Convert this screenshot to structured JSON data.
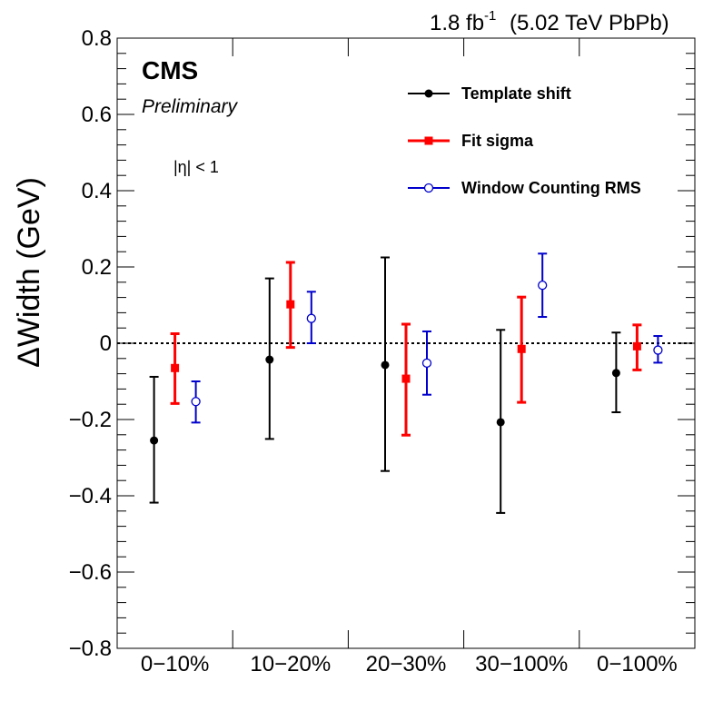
{
  "chart_data": {
    "type": "scatter",
    "header": "(5.02 TeV PbPb)",
    "lumi_value": "1.8 fb",
    "lumi_exp": "-1",
    "experiment": "CMS",
    "status": "Preliminary",
    "annotation": "|η| < 1",
    "ylabel": "ΔWidth (GeV)",
    "ylim": [
      -0.8,
      0.8
    ],
    "yticks": [
      -0.8,
      -0.6,
      -0.4,
      -0.2,
      0,
      0.2,
      0.4,
      0.6,
      0.8
    ],
    "ytick_labels": [
      "−0.8",
      "−0.6",
      "−0.4",
      "−0.2",
      "0",
      "0.2",
      "0.4",
      "0.6",
      "0.8"
    ],
    "categories": [
      "0−10%",
      "10−20%",
      "20−30%",
      "30−100%",
      "0−100%"
    ],
    "series": [
      {
        "name": "Template shift",
        "color": "#000000",
        "marker": "filled-circle",
        "values": [
          -0.255,
          -0.043,
          -0.057,
          -0.207,
          -0.078
        ],
        "err_low": [
          0.163,
          0.208,
          0.278,
          0.238,
          0.103
        ],
        "err_high": [
          0.167,
          0.213,
          0.282,
          0.242,
          0.106
        ]
      },
      {
        "name": "Fit sigma",
        "color": "#ff0000",
        "marker": "filled-square",
        "values": [
          -0.065,
          0.102,
          -0.093,
          -0.015,
          -0.008
        ],
        "err_low": [
          0.093,
          0.113,
          0.148,
          0.14,
          0.062
        ],
        "err_high": [
          0.09,
          0.11,
          0.143,
          0.136,
          0.056
        ]
      },
      {
        "name": "Window Counting RMS",
        "color": "#0000cc",
        "marker": "open-circle",
        "values": [
          -0.153,
          0.065,
          -0.052,
          0.152,
          -0.018
        ],
        "err_low": [
          0.055,
          0.065,
          0.083,
          0.083,
          0.033
        ],
        "err_high": [
          0.053,
          0.07,
          0.083,
          0.083,
          0.037
        ]
      }
    ],
    "reference_line": 0,
    "legend_position": "top-right",
    "grid": false
  }
}
